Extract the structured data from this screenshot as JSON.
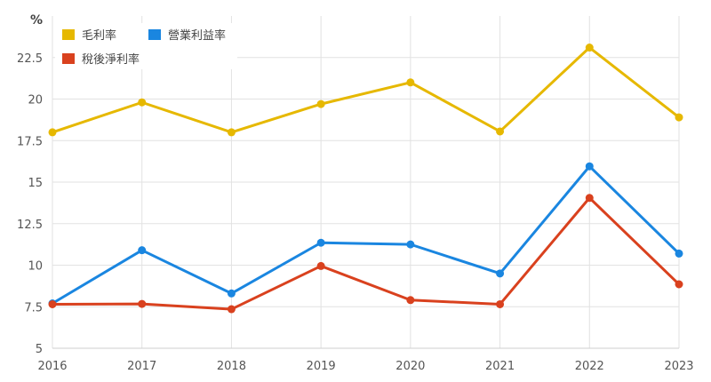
{
  "chart_data": {
    "type": "line",
    "ylabel": "%",
    "x": [
      "2016",
      "2017",
      "2018",
      "2019",
      "2020",
      "2021",
      "2022",
      "2023"
    ],
    "ylim": [
      5,
      25
    ],
    "yticks": [
      "5",
      "7.5",
      "10",
      "12.5",
      "15",
      "17.5",
      "20",
      "22.5"
    ],
    "grid": true,
    "legend_position": "top-left",
    "series": [
      {
        "name": "毛利率",
        "color": "#e6b800",
        "values": [
          18.0,
          19.8,
          18.0,
          19.7,
          21.0,
          18.05,
          23.1,
          18.9
        ]
      },
      {
        "name": "營業利益率",
        "color": "#1a86e0",
        "values": [
          7.7,
          10.9,
          8.3,
          11.35,
          11.25,
          9.5,
          15.95,
          10.7
        ]
      },
      {
        "name": "稅後淨利率",
        "color": "#d9411e",
        "values": [
          7.65,
          7.67,
          7.35,
          9.95,
          7.9,
          7.65,
          14.05,
          8.85
        ]
      }
    ]
  }
}
